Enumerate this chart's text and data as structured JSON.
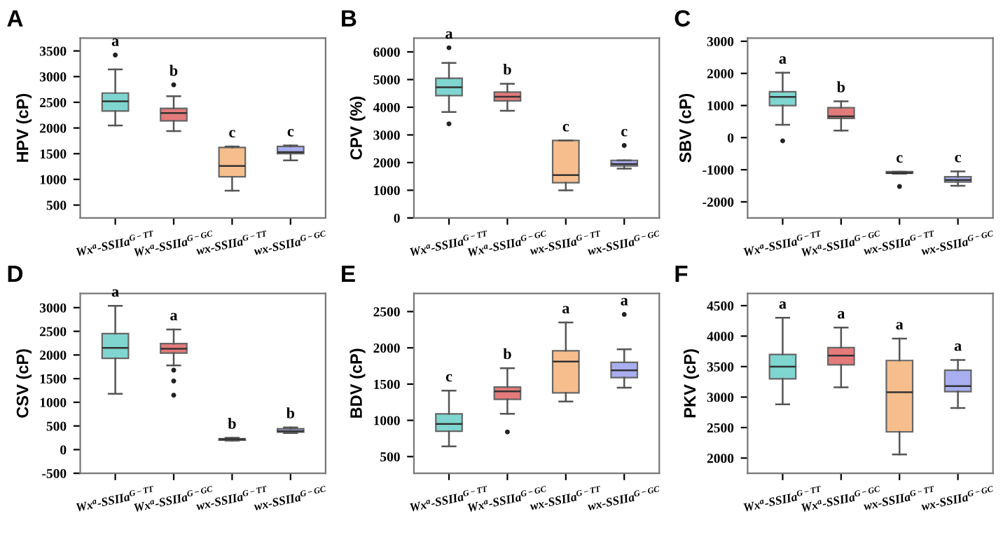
{
  "chart_data": [
    {
      "type": "box",
      "title": "A",
      "ylabel": "HPV (cP)",
      "categories": [
        "Wx$^{a}$-SSIIa$^{G−TT}$",
        "Wx$^{a}$-SSIIa$^{G−GC}$",
        "wx-SSIIa$^{G−TT}$",
        "wx-SSIIa$^{G−GC}$"
      ],
      "colors": [
        "#7fd6d0",
        "#e57a7a",
        "#f7be8d",
        "#a9aef0"
      ],
      "ylim": [
        250,
        3750
      ],
      "yticks": [
        500,
        1000,
        1500,
        2000,
        2500,
        3000,
        3500
      ],
      "boxes": [
        {
          "low": 2050,
          "q1": 2330,
          "median": 2520,
          "q3": 2680,
          "high": 3140,
          "outliers": [
            3420
          ]
        },
        {
          "low": 1940,
          "q1": 2140,
          "median": 2290,
          "q3": 2380,
          "high": 2620,
          "outliers": [
            2840
          ]
        },
        {
          "low": 780,
          "q1": 1050,
          "median": 1260,
          "q3": 1620,
          "high": 1640
        },
        {
          "low": 1370,
          "q1": 1500,
          "median": 1530,
          "q3": 1640,
          "high": 1660
        }
      ],
      "annotations": [
        "a",
        "b",
        "c",
        "c"
      ]
    },
    {
      "type": "box",
      "title": "B",
      "ylabel": "CPV (%)",
      "categories": [
        "Wx$^{a}$-SSIIa$^{G−TT}$",
        "Wx$^{a}$-SSIIa$^{G−GC}$",
        "wx-SSIIa$^{G−TT}$",
        "wx-SSIIa$^{G−GC}$"
      ],
      "colors": [
        "#7fd6d0",
        "#e57a7a",
        "#f7be8d",
        "#a9aef0"
      ],
      "ylim": [
        0,
        6500
      ],
      "yticks": [
        0,
        1000,
        2000,
        3000,
        4000,
        5000,
        6000
      ],
      "boxes": [
        {
          "low": 3830,
          "q1": 4420,
          "median": 4720,
          "q3": 5050,
          "high": 5600,
          "outliers": [
            3400,
            6150
          ]
        },
        {
          "low": 3870,
          "q1": 4230,
          "median": 4380,
          "q3": 4550,
          "high": 4850
        },
        {
          "low": 1000,
          "q1": 1270,
          "median": 1550,
          "q3": 2800,
          "high": 2800
        },
        {
          "low": 1780,
          "q1": 1880,
          "median": 1950,
          "q3": 2080,
          "high": 2080,
          "outliers": [
            2620
          ]
        }
      ],
      "annotations": [
        "a",
        "b",
        "c",
        "c"
      ]
    },
    {
      "type": "box",
      "title": "C",
      "ylabel": "SBV (cP)",
      "categories": [
        "Wx$^{a}$-SSIIa$^{G−TT}$",
        "Wx$^{a}$-SSIIa$^{G−GC}$",
        "wx-SSIIa$^{G−TT}$",
        "wx-SSIIa$^{G−GC}$"
      ],
      "colors": [
        "#7fd6d0",
        "#e57a7a",
        "#f7be8d",
        "#a9aef0"
      ],
      "ylim": [
        -2500,
        3100
      ],
      "yticks": [
        -2000,
        -1000,
        0,
        1000,
        2000,
        3000
      ],
      "boxes": [
        {
          "low": 400,
          "q1": 1000,
          "median": 1270,
          "q3": 1430,
          "high": 2020,
          "outliers": [
            -100
          ]
        },
        {
          "low": 220,
          "q1": 600,
          "median": 660,
          "q3": 930,
          "high": 1130
        },
        {
          "low": -1120,
          "q1": -1110,
          "median": -1100,
          "q3": -1060,
          "high": -1060,
          "outliers": [
            -1520
          ]
        },
        {
          "low": -1500,
          "q1": -1380,
          "median": -1320,
          "q3": -1220,
          "high": -1050
        }
      ],
      "annotations": [
        "a",
        "b",
        "c",
        "c"
      ]
    },
    {
      "type": "box",
      "title": "D",
      "ylabel": "CSV (cP)",
      "categories": [
        "Wx$^{a}$-SSIIa$^{G−TT}$",
        "Wx$^{a}$-SSIIa$^{G−GC}$",
        "wx-SSIIa$^{G−TT}$",
        "wx-SSIIa$^{G−GC}$"
      ],
      "colors": [
        "#7fd6d0",
        "#e57a7a",
        "#f7be8d",
        "#a9aef0"
      ],
      "ylim": [
        -500,
        3300
      ],
      "yticks": [
        -500,
        0,
        500,
        1000,
        1500,
        2000,
        2500,
        3000
      ],
      "boxes": [
        {
          "low": 1180,
          "q1": 1930,
          "median": 2150,
          "q3": 2450,
          "high": 3040
        },
        {
          "low": 1780,
          "q1": 2040,
          "median": 2130,
          "q3": 2240,
          "high": 2540,
          "outliers": [
            1150,
            1450,
            1680
          ]
        },
        {
          "low": 190,
          "q1": 200,
          "median": 220,
          "q3": 230,
          "high": 250
        },
        {
          "low": 350,
          "q1": 370,
          "median": 390,
          "q3": 440,
          "high": 470
        }
      ],
      "annotations": [
        "a",
        "a",
        "b",
        "b"
      ]
    },
    {
      "type": "box",
      "title": "E",
      "ylabel": "BDV (cP)",
      "categories": [
        "Wx$^{a}$-SSIIa$^{G−TT}$",
        "Wx$^{a}$-SSIIa$^{G−GC}$",
        "wx-SSIIa$^{G−TT}$",
        "wx-SSIIa$^{G−GC}$"
      ],
      "colors": [
        "#7fd6d0",
        "#e57a7a",
        "#f7be8d",
        "#a9aef0"
      ],
      "ylim": [
        270,
        2750
      ],
      "yticks": [
        500,
        1000,
        1500,
        2000,
        2500
      ],
      "boxes": [
        {
          "low": 640,
          "q1": 850,
          "median": 950,
          "q3": 1090,
          "high": 1410
        },
        {
          "low": 1090,
          "q1": 1290,
          "median": 1400,
          "q3": 1460,
          "high": 1720,
          "outliers": [
            840
          ]
        },
        {
          "low": 1260,
          "q1": 1380,
          "median": 1810,
          "q3": 1960,
          "high": 2350
        },
        {
          "low": 1450,
          "q1": 1590,
          "median": 1690,
          "q3": 1800,
          "high": 1980,
          "outliers": [
            2460
          ]
        }
      ],
      "annotations": [
        "c",
        "b",
        "a",
        "a"
      ]
    },
    {
      "type": "box",
      "title": "F",
      "ylabel": "PKV (cP)",
      "categories": [
        "Wx$^{a}$-SSIIa$^{G−TT}$",
        "Wx$^{a}$-SSIIa$^{G−GC}$",
        "wx-SSIIa$^{G−TT}$",
        "wx-SSIIa$^{G−GC}$"
      ],
      "colors": [
        "#7fd6d0",
        "#e57a7a",
        "#f7be8d",
        "#a9aef0"
      ],
      "ylim": [
        1750,
        4700
      ],
      "yticks": [
        2000,
        2500,
        3000,
        3500,
        4000,
        4500
      ],
      "boxes": [
        {
          "low": 2880,
          "q1": 3300,
          "median": 3500,
          "q3": 3700,
          "high": 4300
        },
        {
          "low": 3160,
          "q1": 3530,
          "median": 3680,
          "q3": 3810,
          "high": 4140
        },
        {
          "low": 2060,
          "q1": 2430,
          "median": 3080,
          "q3": 3600,
          "high": 3960
        },
        {
          "low": 2820,
          "q1": 3090,
          "median": 3180,
          "q3": 3440,
          "high": 3610
        }
      ],
      "annotations": [
        "a",
        "a",
        "a",
        "a"
      ]
    }
  ]
}
